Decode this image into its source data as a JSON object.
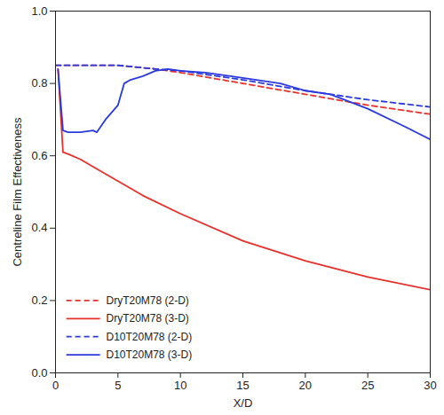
{
  "chart_data": {
    "type": "line",
    "x_label": "X/D",
    "y_label": "Centreline Film Effectiveness",
    "xlim": [
      0,
      30
    ],
    "xticks": [
      0,
      5,
      10,
      15,
      20,
      25,
      30
    ],
    "ylim": [
      0,
      1
    ],
    "yticks": [
      {
        "value": 0,
        "label": "0.0"
      },
      {
        "value": 0.2,
        "label": "0.2"
      },
      {
        "value": 0.4,
        "label": "0.4"
      },
      {
        "value": 0.6,
        "label": "0.6"
      },
      {
        "value": 0.8,
        "label": "0.8"
      },
      {
        "value": 1,
        "label": "1.0"
      }
    ],
    "grid": false,
    "legend": "bottom-left",
    "series": [
      {
        "name": "DryT20M78 (2-D)",
        "color": "#e8302a",
        "line_style": "dashed",
        "x": [
          0,
          2,
          5,
          8,
          10,
          15,
          20,
          25,
          30
        ],
        "values": [
          0.85,
          0.85,
          0.85,
          0.84,
          0.83,
          0.8,
          0.77,
          0.74,
          0.715
        ]
      },
      {
        "name": "DryT20M78 (3-D)",
        "color": "#e8302a",
        "line_style": "solid",
        "x": [
          0.2,
          0.6,
          1,
          2,
          3,
          5,
          7,
          10,
          15,
          20,
          25,
          30
        ],
        "values": [
          0.84,
          0.61,
          0.605,
          0.59,
          0.57,
          0.53,
          0.49,
          0.44,
          0.365,
          0.31,
          0.265,
          0.23
        ]
      },
      {
        "name": "D10T20M78 (2-D)",
        "color": "#2a3ae0",
        "line_style": "dashed",
        "x": [
          0,
          5,
          8,
          10,
          15,
          20,
          25,
          30
        ],
        "values": [
          0.85,
          0.85,
          0.84,
          0.835,
          0.81,
          0.78,
          0.755,
          0.735
        ]
      },
      {
        "name": "D10T20M78 (3-D)",
        "color": "#2a3ae0",
        "line_style": "solid",
        "x": [
          0.2,
          0.6,
          1,
          2,
          3,
          3.3,
          4,
          5,
          5.5,
          6,
          7,
          8,
          9,
          10,
          12,
          15,
          18,
          20,
          22,
          25,
          28,
          30
        ],
        "values": [
          0.84,
          0.67,
          0.665,
          0.665,
          0.67,
          0.665,
          0.7,
          0.74,
          0.8,
          0.81,
          0.82,
          0.835,
          0.84,
          0.835,
          0.83,
          0.815,
          0.8,
          0.78,
          0.77,
          0.73,
          0.68,
          0.645
        ]
      }
    ]
  }
}
